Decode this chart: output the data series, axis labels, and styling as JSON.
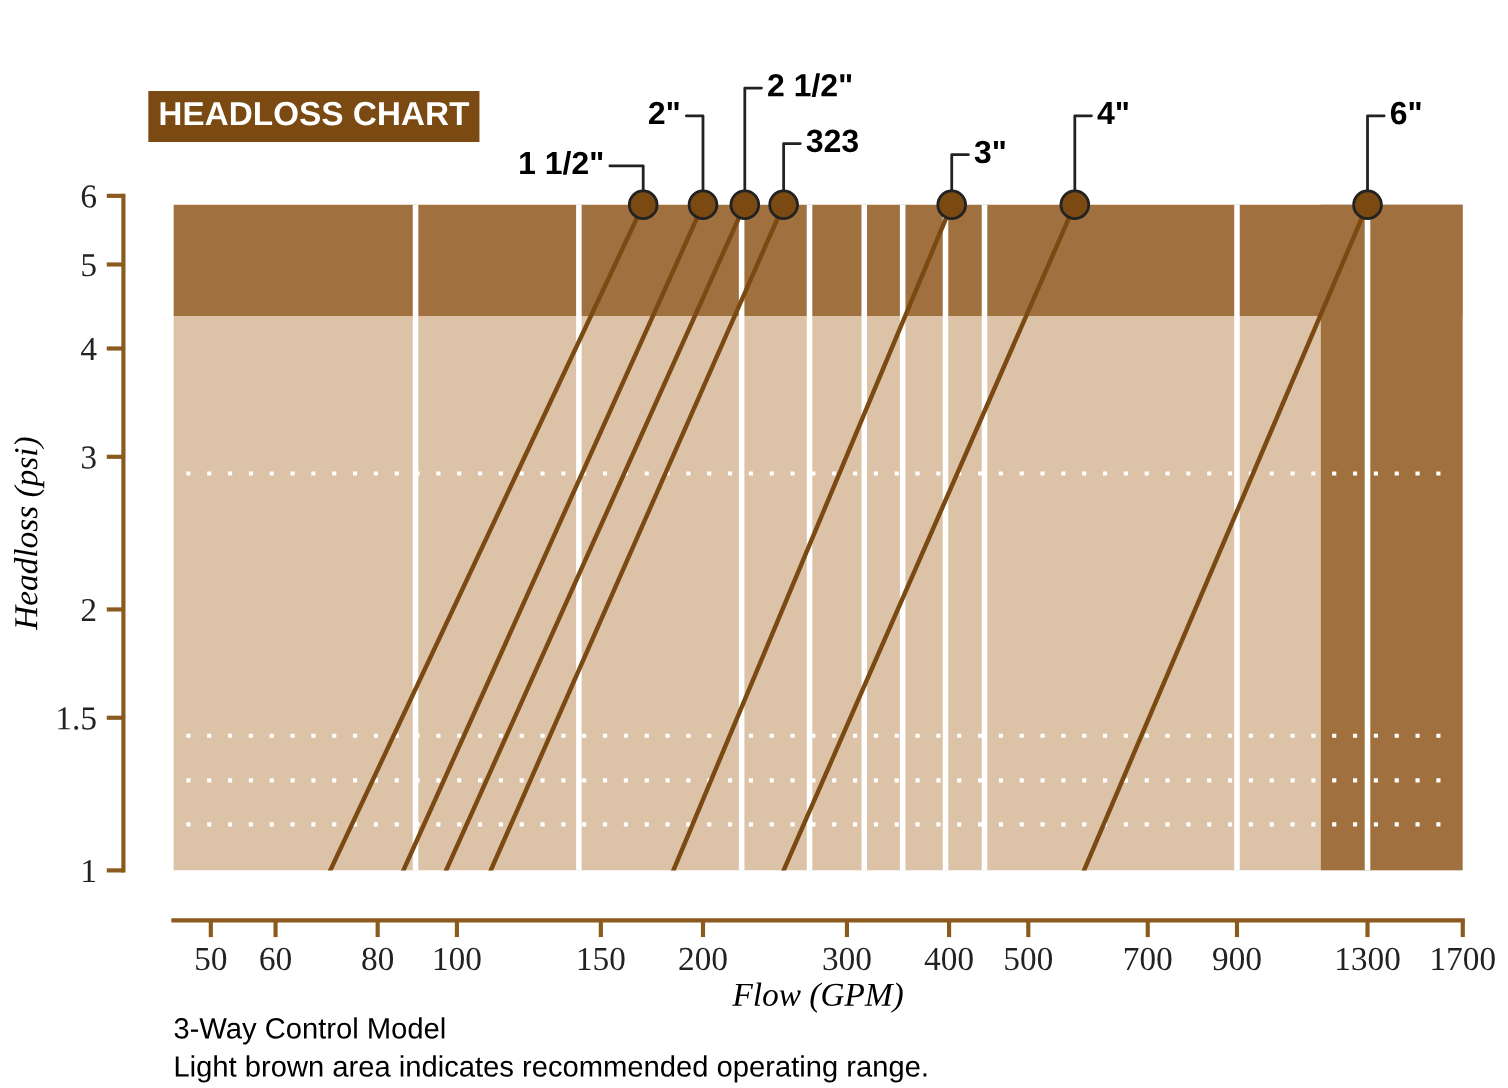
{
  "chart_data": {
    "type": "line",
    "title": "HEADLOSS CHART",
    "xlabel": "Flow (GPM)",
    "ylabel": "Headloss (psi)",
    "log": "xy",
    "xlim": [
      45,
      1700
    ],
    "ylim": [
      1,
      6
    ],
    "xticks": [
      50,
      60,
      80,
      100,
      150,
      200,
      300,
      400,
      500,
      700,
      900,
      1300,
      1700
    ],
    "yticks": [
      1,
      1.5,
      2,
      3,
      4,
      5,
      6
    ],
    "grid": false,
    "legend": "top",
    "marker": "circle",
    "line_style": "solid",
    "series": [
      {
        "name": "1 1/2\"",
        "color": "#7a4a12",
        "x": [
          70,
          169
        ],
        "values": [
          1,
          5.86
        ]
      },
      {
        "name": "2\"",
        "color": "#7a4a12",
        "x": [
          86,
          200
        ],
        "values": [
          1,
          5.86
        ]
      },
      {
        "name": "2 1/2\"",
        "color": "#7a4a12",
        "x": [
          97,
          225
        ],
        "values": [
          1,
          5.86
        ]
      },
      {
        "name": "323",
        "color": "#7a4a12",
        "x": [
          110,
          251
        ],
        "values": [
          1,
          5.86
        ]
      },
      {
        "name": "3\"",
        "color": "#7a4a12",
        "x": [
          184,
          403
        ],
        "values": [
          1,
          5.86
        ]
      },
      {
        "name": "4\"",
        "color": "#7a4a12",
        "x": [
          251,
          570
        ],
        "values": [
          1,
          5.86
        ]
      },
      {
        "name": "6\"",
        "color": "#7a4a12",
        "x": [
          585,
          1300
        ],
        "values": [
          1,
          5.86
        ]
      }
    ],
    "bands": [
      {
        "axis": "y",
        "from": 1,
        "to": 4.36,
        "color": "#dcc2a6"
      },
      {
        "axis": "y",
        "from": 4.36,
        "to": 5.86,
        "color": "#a0703f"
      },
      {
        "axis": "x",
        "from": 1140,
        "to": 1700,
        "color": "#a0703f"
      }
    ],
    "ref_lines": [
      {
        "axis": "x",
        "value": 89,
        "color": "#ffffff",
        "line_style": "solid"
      },
      {
        "axis": "x",
        "value": 141,
        "color": "#ffffff",
        "line_style": "solid"
      },
      {
        "axis": "x",
        "value": 223,
        "color": "#ffffff",
        "line_style": "solid"
      },
      {
        "axis": "x",
        "value": 270,
        "color": "#ffffff",
        "line_style": "solid"
      },
      {
        "axis": "x",
        "value": 315,
        "color": "#ffffff",
        "line_style": "solid"
      },
      {
        "axis": "x",
        "value": 351,
        "color": "#ffffff",
        "line_style": "solid"
      },
      {
        "axis": "x",
        "value": 396,
        "color": "#ffffff",
        "line_style": "solid"
      },
      {
        "axis": "x",
        "value": 442,
        "color": "#ffffff",
        "line_style": "solid"
      },
      {
        "axis": "x",
        "value": 900,
        "color": "#ffffff",
        "line_style": "solid"
      },
      {
        "axis": "x",
        "value": 1300,
        "color": "#ffffff",
        "line_style": "solid"
      },
      {
        "axis": "y",
        "value": 2.87,
        "color": "#ffffff",
        "line_style": "dotted"
      },
      {
        "axis": "y",
        "value": 1.43,
        "color": "#ffffff",
        "line_style": "dotted"
      },
      {
        "axis": "y",
        "value": 1.27,
        "color": "#ffffff",
        "line_style": "dotted"
      },
      {
        "axis": "y",
        "value": 1.13,
        "color": "#ffffff",
        "line_style": "dotted"
      }
    ],
    "annotations": [
      "3-Way Control Model",
      "Light brown area indicates recommended operating range."
    ]
  }
}
